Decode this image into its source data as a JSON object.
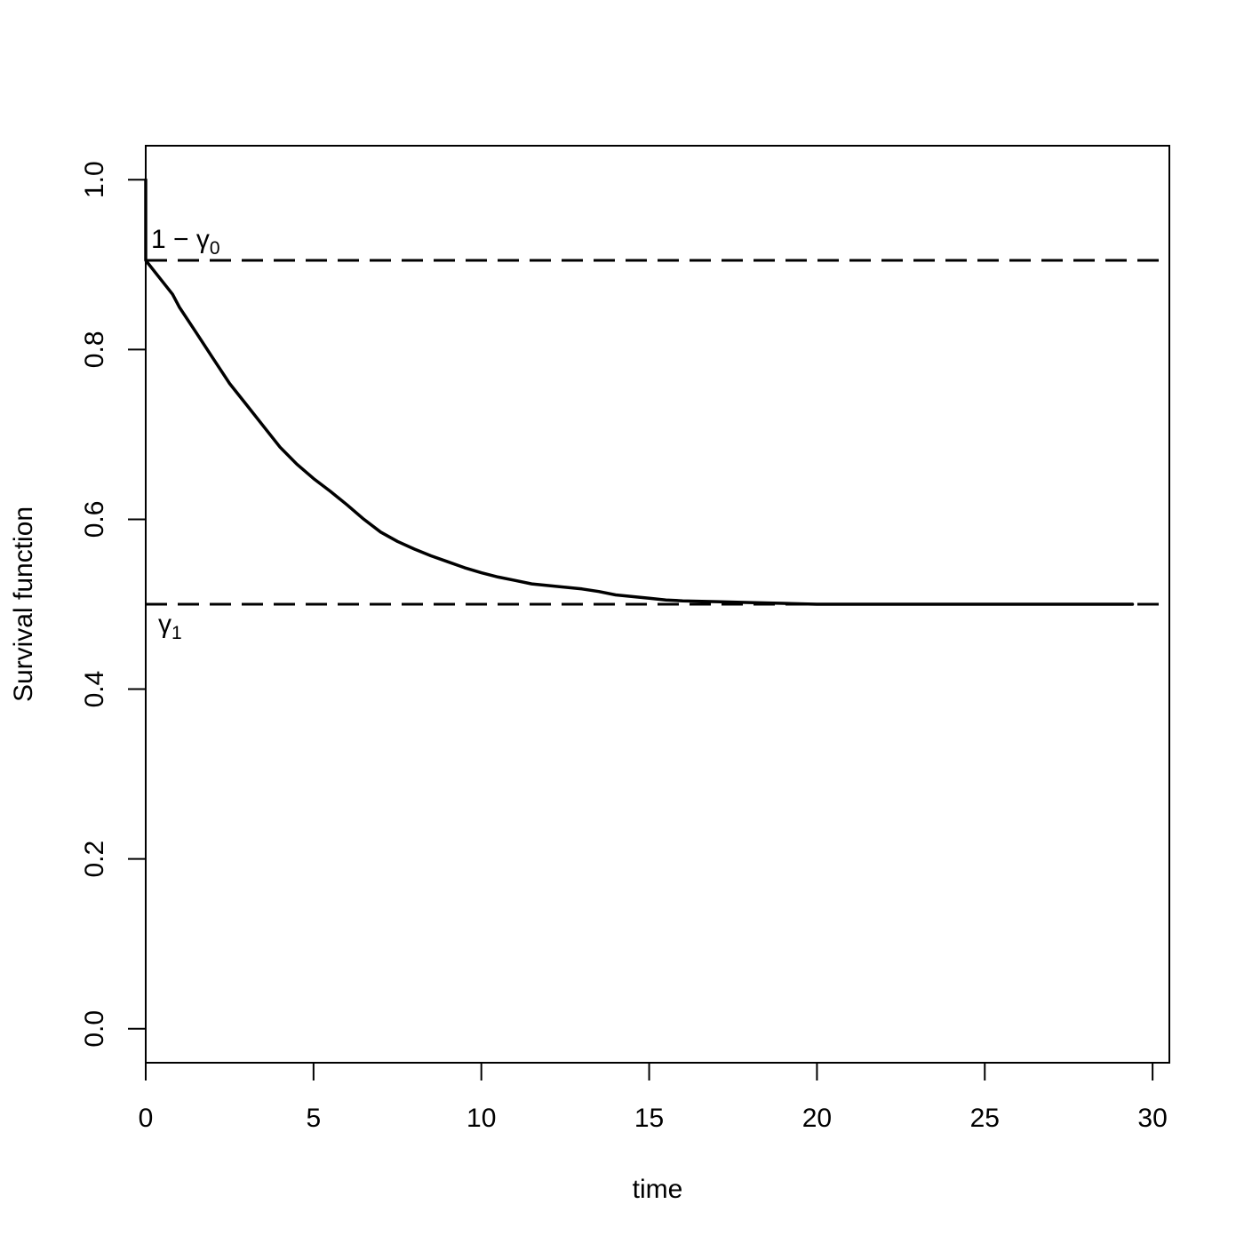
{
  "chart_data": {
    "type": "line",
    "title": "",
    "xlabel": "time",
    "ylabel": "Survival function",
    "xlim": [
      0,
      30.5
    ],
    "ylim": [
      -0.04,
      1.04
    ],
    "x_ticks": [
      0,
      5,
      10,
      15,
      20,
      25,
      30
    ],
    "x_tick_labels": [
      "0",
      "5",
      "10",
      "15",
      "20",
      "25",
      "30"
    ],
    "y_ticks": [
      0.0,
      0.2,
      0.4,
      0.6,
      0.8,
      1.0
    ],
    "y_tick_labels": [
      "0.0",
      "0.2",
      "0.4",
      "0.6",
      "0.8",
      "1.0"
    ],
    "grid": false,
    "legend": "none",
    "series": [
      {
        "style": "solid",
        "x": [
          0,
          0,
          0.3,
          0.6,
          0.8,
          1.0,
          1.5,
          2.0,
          2.5,
          3.0,
          3.5,
          4.0,
          4.5,
          5.0,
          5.5,
          6.0,
          6.5,
          7.0,
          7.5,
          8.0,
          8.5,
          9.0,
          9.5,
          10.0,
          10.5,
          11.0,
          11.5,
          12.0,
          12.5,
          13.0,
          13.5,
          14.0,
          14.5,
          15.0,
          15.5,
          16.0,
          17.0,
          18.0,
          19.0,
          20.0,
          21.0,
          22.0,
          23.0,
          25.0,
          27.0,
          29.4
        ],
        "y": [
          1.0,
          0.905,
          0.89,
          0.875,
          0.865,
          0.85,
          0.82,
          0.79,
          0.76,
          0.735,
          0.71,
          0.685,
          0.665,
          0.648,
          0.633,
          0.617,
          0.6,
          0.585,
          0.574,
          0.565,
          0.557,
          0.55,
          0.543,
          0.537,
          0.532,
          0.528,
          0.524,
          0.522,
          0.52,
          0.518,
          0.515,
          0.511,
          0.509,
          0.507,
          0.505,
          0.504,
          0.503,
          0.502,
          0.501,
          0.5,
          0.5,
          0.5,
          0.5,
          0.5,
          0.5,
          0.5
        ]
      }
    ],
    "reference_lines": [
      {
        "orientation": "horizontal",
        "y": 0.905,
        "style": "dashed",
        "label_main": "1 − γ",
        "label_sub": "0"
      },
      {
        "orientation": "horizontal",
        "y": 0.5,
        "style": "dashed",
        "label_main": "γ",
        "label_sub": "1"
      }
    ]
  }
}
